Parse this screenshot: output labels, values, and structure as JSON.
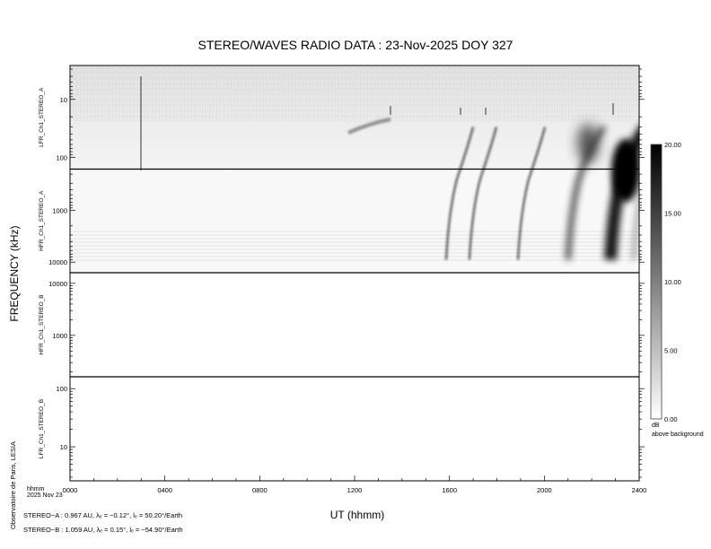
{
  "chart_data": {
    "type": "heatmap",
    "title": "STEREO/WAVES  RADIO  DATA : 23-Nov-2025  DOY 327",
    "xlabel": "UT (hhmm)",
    "ylabel": "FREQUENCY (kHz)",
    "x_unit_label": "hhmm",
    "date_label": "2025 Nov 23",
    "xlim_hours": [
      0,
      24
    ],
    "x_ticks": [
      "0000",
      "0400",
      "0800",
      "1200",
      "1600",
      "2000",
      "2400"
    ],
    "y_scale": "log",
    "panels": [
      {
        "name": "LFR_Ch1_STEREO_A",
        "ylim_khz": [
          2.6,
          160
        ],
        "direction": "increasing-downward",
        "tick_labels": [
          "10",
          "100"
        ],
        "tick_values": [
          10,
          100
        ]
      },
      {
        "name": "HFR_Ch1_STEREO_A",
        "ylim_khz": [
          160,
          16000
        ],
        "direction": "increasing-downward",
        "tick_labels": [
          "1000",
          "10000"
        ],
        "tick_values": [
          1000,
          10000
        ]
      },
      {
        "name": "HFR_Ch1_STEREO_B",
        "ylim_khz": [
          16000,
          160
        ],
        "direction": "decreasing-downward",
        "tick_labels": [
          "10000",
          "1000"
        ],
        "tick_values": [
          10000,
          1000
        ]
      },
      {
        "name": "LFR_Ch1_STEREO_B",
        "ylim_khz": [
          160,
          2.6
        ],
        "direction": "decreasing-downward",
        "tick_labels": [
          "100",
          "10"
        ],
        "tick_values": [
          100,
          10
        ]
      }
    ],
    "bursts_stereo_a_ut_hours": [
      15.86,
      16.84,
      18.89,
      21.0,
      22.79,
      23.77
    ],
    "colorbar": {
      "range_db": [
        0,
        20
      ],
      "tick_labels": [
        "20.00",
        "15.00",
        "10.00",
        "5.00",
        "0.00"
      ],
      "tick_values": [
        20,
        15,
        10,
        5,
        0
      ],
      "unit": "dB",
      "caption": "above background",
      "colormap": "white-to-black"
    }
  },
  "footer": {
    "credit": "Observatoire de Paris, LESIA",
    "stereo_a": "STEREO−A : 0.967 AU, λₑ = −0.12°, lₑ = 50.20°/Earth",
    "stereo_b": "STEREO−B : 1.059 AU, λₑ = 0.15°, lₑ = −54.90°/Earth"
  }
}
